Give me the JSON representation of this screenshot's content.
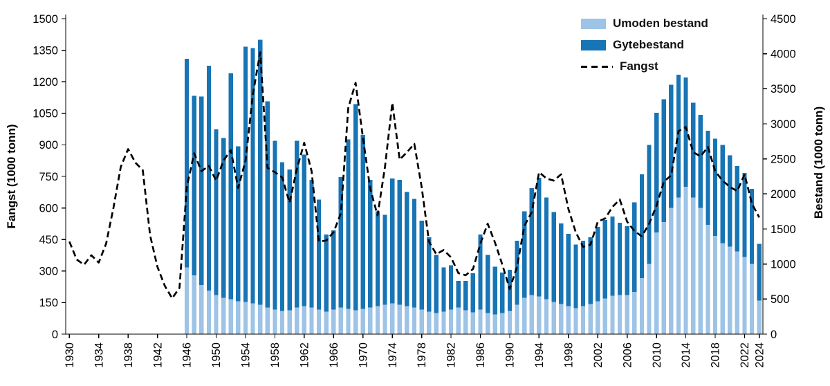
{
  "chart_data": {
    "type": "bar",
    "ylabel_left": "Fangst (1000 tonn)",
    "ylabel_right": "Bestand (1000 tonn)",
    "left_axis": {
      "min": 0,
      "max": 1500,
      "tick_step": 150,
      "ticks": [
        0,
        150,
        300,
        450,
        600,
        750,
        900,
        1050,
        1200,
        1350,
        1500
      ]
    },
    "right_axis": {
      "min": 0,
      "max": 4500,
      "tick_step": 500,
      "ticks": [
        0,
        500,
        1000,
        1500,
        2000,
        2500,
        3000,
        3500,
        4000,
        4500
      ]
    },
    "x_range": [
      1930,
      2024
    ],
    "x_tick_years": [
      1930,
      1934,
      1938,
      1942,
      1946,
      1950,
      1954,
      1958,
      1962,
      1966,
      1970,
      1974,
      1978,
      1982,
      1986,
      1990,
      1994,
      1998,
      2002,
      2006,
      2010,
      2014,
      2018,
      2022,
      2024
    ],
    "legend": [
      {
        "label": "Umoden bestand",
        "swatch": "umoden"
      },
      {
        "label": "Gytebestand",
        "swatch": "gyte"
      },
      {
        "label": "Fangst",
        "swatch": "dash"
      }
    ],
    "colors": {
      "umoden": "#9DC3E6",
      "gyte": "#1774B5",
      "fangst": "#000000"
    },
    "bars": {
      "axis": "right",
      "start_year": 1946,
      "stack_order": [
        "umoden",
        "gyte"
      ],
      "umoden": [
        950,
        840,
        700,
        620,
        560,
        520,
        500,
        470,
        460,
        440,
        420,
        380,
        350,
        330,
        340,
        380,
        400,
        380,
        350,
        320,
        350,
        380,
        360,
        340,
        360,
        380,
        400,
        420,
        440,
        420,
        400,
        380,
        350,
        320,
        300,
        320,
        350,
        380,
        340,
        310,
        350,
        300,
        280,
        300,
        330,
        420,
        520,
        560,
        540,
        500,
        460,
        430,
        400,
        370,
        400,
        430,
        470,
        510,
        550,
        560,
        560,
        600,
        800,
        1000,
        1450,
        1600,
        1800,
        1950,
        2100,
        1950,
        1800,
        1560,
        1400,
        1300,
        1250,
        1180,
        1100,
        1000,
        480
      ],
      "gyte": [
        2980,
        2560,
        2690,
        3210,
        2360,
        2280,
        3220,
        2210,
        3640,
        3640,
        3780,
        2940,
        2410,
        2120,
        2010,
        2380,
        2160,
        1820,
        1570,
        1100,
        1130,
        1860,
        2420,
        2940,
        2480,
        1820,
        1350,
        1280,
        1780,
        1780,
        1630,
        1550,
        1270,
        1060,
        830,
        630,
        630,
        380,
        420,
        560,
        1070,
        830,
        680,
        580,
        590,
        910,
        1230,
        1520,
        1690,
        1450,
        1280,
        1150,
        1030,
        910,
        930,
        950,
        1060,
        1120,
        1130,
        1030,
        980,
        1280,
        1480,
        1700,
        1710,
        1750,
        1760,
        1750,
        1560,
        1350,
        1330,
        1340,
        1390,
        1400,
        1300,
        1220,
        1200,
        1070,
        810
      ]
    },
    "line": {
      "name": "Fangst",
      "axis": "left",
      "start_year": 1930,
      "values": [
        440,
        355,
        330,
        375,
        340,
        430,
        600,
        795,
        880,
        815,
        780,
        470,
        320,
        230,
        170,
        220,
        700,
        860,
        775,
        800,
        730,
        825,
        875,
        695,
        825,
        1140,
        1340,
        790,
        770,
        745,
        625,
        785,
        910,
        775,
        440,
        445,
        485,
        575,
        1075,
        1195,
        935,
        690,
        565,
        795,
        1100,
        830,
        865,
        905,
        700,
        440,
        380,
        400,
        365,
        290,
        280,
        310,
        430,
        525,
        435,
        330,
        215,
        320,
        515,
        580,
        770,
        740,
        730,
        760,
        595,
        485,
        415,
        425,
        535,
        550,
        605,
        640,
        535,
        490,
        465,
        525,
        610,
        725,
        755,
        965,
        985,
        865,
        845,
        890,
        775,
        730,
        700,
        680,
        760,
        620,
        555
      ]
    }
  }
}
